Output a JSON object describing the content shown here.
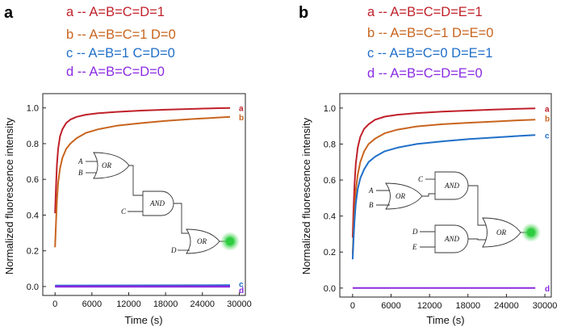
{
  "colors": {
    "a": "#c0202a",
    "b": "#c8641e",
    "c": "#1f6fc8",
    "d": "#8a2be2",
    "glow": "#2ecc40"
  },
  "chart_data": [
    {
      "panel": "a",
      "type": "line",
      "xlabel": "Time (s)",
      "ylabel": "Normalized fluorescence intensity",
      "xlim": [
        -2000,
        31000
      ],
      "ylim": [
        -0.05,
        1.08
      ],
      "xticks": [
        0,
        6000,
        12000,
        18000,
        24000,
        30000
      ],
      "xtick_labels": [
        "0",
        "6000",
        "12000",
        "18000",
        "24000",
        "30000"
      ],
      "yticks": [
        0.0,
        0.2,
        0.4,
        0.6,
        0.8,
        1.0
      ],
      "ytick_labels": [
        "0.0",
        "0.2",
        "0.4",
        "0.6",
        "0.8",
        "1.0"
      ],
      "legend": [
        {
          "key": "a",
          "text": "a -- A=B=C=D=1"
        },
        {
          "key": "b",
          "text": "b -- A=B=C=1 D=0"
        },
        {
          "key": "c",
          "text": "c -- A=B=1 C=D=0"
        },
        {
          "key": "d",
          "text": "d -- A=B=C=D=0"
        }
      ],
      "series": [
        {
          "name": "a",
          "x": [
            0,
            150,
            300,
            500,
            800,
            1200,
            1800,
            2500,
            3500,
            5000,
            7000,
            10000,
            14000,
            18000,
            22000,
            26000,
            28500
          ],
          "values": [
            0.41,
            0.56,
            0.68,
            0.77,
            0.84,
            0.88,
            0.915,
            0.935,
            0.95,
            0.962,
            0.97,
            0.978,
            0.985,
            0.99,
            0.994,
            0.998,
            1.0
          ]
        },
        {
          "name": "b",
          "x": [
            0,
            150,
            300,
            500,
            800,
            1200,
            1800,
            2500,
            3500,
            5000,
            7000,
            10000,
            14000,
            18000,
            22000,
            26000,
            28500
          ],
          "values": [
            0.22,
            0.36,
            0.48,
            0.58,
            0.66,
            0.72,
            0.77,
            0.8,
            0.83,
            0.86,
            0.88,
            0.9,
            0.915,
            0.927,
            0.937,
            0.945,
            0.95
          ]
        },
        {
          "name": "c",
          "x": [
            0,
            28500
          ],
          "values": [
            0.004,
            0.006
          ]
        },
        {
          "name": "d",
          "x": [
            0,
            28500
          ],
          "values": [
            0.0,
            0.0
          ]
        }
      ],
      "series_tags": [
        "a",
        "b",
        "c",
        "d"
      ],
      "circuit": {
        "gates": [
          "OR",
          "AND",
          "OR"
        ],
        "inputs": [
          "A",
          "B",
          "C",
          "D"
        ]
      }
    },
    {
      "panel": "b",
      "type": "line",
      "xlabel": "Time (s)",
      "ylabel": "Normalized fluorescence intensity",
      "xlim": [
        -2000,
        31000
      ],
      "ylim": [
        -0.05,
        1.08
      ],
      "xticks": [
        0,
        6000,
        12000,
        18000,
        24000,
        30000
      ],
      "xtick_labels": [
        "0",
        "6000",
        "12000",
        "18000",
        "24000",
        "30000"
      ],
      "yticks": [
        0.0,
        0.2,
        0.4,
        0.6,
        0.8,
        1.0
      ],
      "ytick_labels": [
        "0.0",
        "0.2",
        "0.4",
        "0.6",
        "0.8",
        "1.0"
      ],
      "legend": [
        {
          "key": "a",
          "text": "a -- A=B=C=D=E=1"
        },
        {
          "key": "b",
          "text": "b -- A=B=C=1 D=E=0"
        },
        {
          "key": "c",
          "text": "c -- A=B=C=0 D=E=1"
        },
        {
          "key": "d",
          "text": "d -- A=B=C=D=E=0"
        }
      ],
      "series": [
        {
          "name": "a",
          "x": [
            0,
            150,
            300,
            500,
            800,
            1200,
            1800,
            2500,
            3500,
            5000,
            7000,
            10000,
            14000,
            18000,
            22000,
            26000,
            28500
          ],
          "values": [
            0.28,
            0.45,
            0.58,
            0.69,
            0.78,
            0.84,
            0.885,
            0.91,
            0.935,
            0.952,
            0.963,
            0.972,
            0.98,
            0.986,
            0.991,
            0.996,
            0.998
          ]
        },
        {
          "name": "b",
          "x": [
            0,
            150,
            300,
            500,
            800,
            1200,
            1800,
            2500,
            3500,
            5000,
            7000,
            10000,
            14000,
            18000,
            22000,
            26000,
            28500
          ],
          "values": [
            0.19,
            0.32,
            0.44,
            0.54,
            0.63,
            0.7,
            0.76,
            0.8,
            0.83,
            0.86,
            0.88,
            0.898,
            0.91,
            0.918,
            0.925,
            0.932,
            0.935
          ]
        },
        {
          "name": "c",
          "x": [
            0,
            150,
            300,
            500,
            800,
            1200,
            1800,
            2500,
            3500,
            5000,
            7000,
            10000,
            14000,
            18000,
            22000,
            26000,
            28500
          ],
          "values": [
            0.16,
            0.28,
            0.38,
            0.47,
            0.55,
            0.61,
            0.66,
            0.7,
            0.73,
            0.76,
            0.78,
            0.8,
            0.815,
            0.827,
            0.836,
            0.845,
            0.85
          ]
        },
        {
          "name": "d",
          "x": [
            0,
            28500
          ],
          "values": [
            0.0,
            0.0
          ]
        }
      ],
      "series_tags": [
        "a",
        "b",
        "c",
        "d"
      ],
      "circuit": {
        "gates": [
          "AND",
          "AND",
          "OR",
          "OR"
        ],
        "inputs": [
          "A",
          "B",
          "C",
          "D",
          "E"
        ]
      }
    }
  ]
}
